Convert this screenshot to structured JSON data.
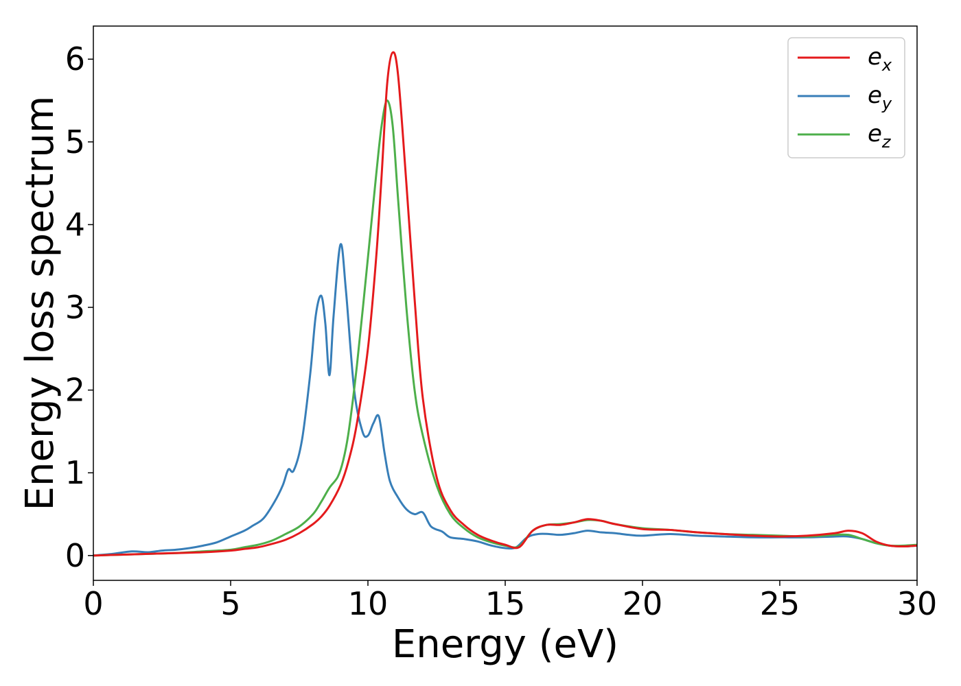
{
  "chart_data": {
    "type": "line",
    "title": "",
    "xlabel": "Energy (eV)",
    "ylabel": "Energy loss spectrum",
    "xlim": [
      0,
      30
    ],
    "ylim": [
      -0.3,
      6.4
    ],
    "xticks": [
      0,
      5,
      10,
      15,
      20,
      25,
      30
    ],
    "xtick_labels": [
      "0",
      "5",
      "10",
      "15",
      "20",
      "25",
      "30"
    ],
    "yticks": [
      0,
      1,
      2,
      3,
      4,
      5,
      6
    ],
    "ytick_labels": [
      "0",
      "1",
      "2",
      "3",
      "4",
      "5",
      "6"
    ],
    "grid": false,
    "legend_position": "top-right",
    "series": [
      {
        "name": "e_x",
        "legend_base": "e",
        "legend_sub": "x",
        "color": "#e41a1c",
        "x": [
          0,
          1,
          2,
          3,
          4,
          5,
          5.5,
          6,
          6.5,
          7,
          7.5,
          8,
          8.3,
          8.6,
          9,
          9.3,
          9.6,
          10,
          10.3,
          10.5,
          10.7,
          10.9,
          11.1,
          11.4,
          11.7,
          12,
          12.5,
          13,
          13.5,
          14,
          14.5,
          15,
          15.5,
          16,
          16.5,
          17,
          17.5,
          18,
          18.5,
          19,
          20,
          21,
          22,
          23,
          24,
          25,
          26,
          27,
          27.5,
          28,
          28.5,
          29,
          29.5,
          30
        ],
        "y": [
          0,
          0.01,
          0.02,
          0.03,
          0.04,
          0.06,
          0.08,
          0.1,
          0.14,
          0.19,
          0.27,
          0.38,
          0.47,
          0.6,
          0.85,
          1.15,
          1.6,
          2.5,
          3.6,
          4.6,
          5.7,
          6.08,
          5.8,
          4.5,
          3.1,
          1.9,
          0.95,
          0.55,
          0.37,
          0.25,
          0.18,
          0.13,
          0.1,
          0.3,
          0.37,
          0.37,
          0.4,
          0.44,
          0.42,
          0.38,
          0.32,
          0.31,
          0.28,
          0.26,
          0.24,
          0.23,
          0.24,
          0.27,
          0.3,
          0.27,
          0.17,
          0.12,
          0.11,
          0.12
        ]
      },
      {
        "name": "e_y",
        "legend_base": "e",
        "legend_sub": "y",
        "color": "#377eb8",
        "x": [
          0,
          0.7,
          1.4,
          2,
          2.5,
          3,
          3.5,
          4,
          4.5,
          5,
          5.5,
          5.8,
          6.2,
          6.6,
          6.9,
          7.1,
          7.3,
          7.6,
          7.9,
          8.1,
          8.3,
          8.45,
          8.6,
          8.75,
          9,
          9.2,
          9.5,
          9.8,
          10,
          10.2,
          10.4,
          10.6,
          10.8,
          11.1,
          11.4,
          11.7,
          12,
          12.3,
          12.7,
          13,
          13.5,
          14,
          14.5,
          15,
          15.4,
          15.8,
          16.2,
          16.6,
          17,
          17.5,
          18,
          18.5,
          19,
          19.5,
          20,
          21,
          22,
          23,
          24,
          25,
          26,
          27,
          27.5,
          28,
          28.5,
          29,
          29.5,
          30
        ],
        "y": [
          0,
          0.02,
          0.05,
          0.04,
          0.06,
          0.07,
          0.09,
          0.12,
          0.16,
          0.23,
          0.3,
          0.36,
          0.45,
          0.65,
          0.85,
          1.04,
          1.03,
          1.4,
          2.2,
          2.9,
          3.14,
          2.8,
          2.18,
          2.9,
          3.76,
          3.2,
          2.0,
          1.5,
          1.45,
          1.6,
          1.68,
          1.25,
          0.9,
          0.7,
          0.56,
          0.5,
          0.52,
          0.35,
          0.29,
          0.22,
          0.2,
          0.17,
          0.12,
          0.09,
          0.1,
          0.22,
          0.26,
          0.26,
          0.25,
          0.27,
          0.3,
          0.28,
          0.27,
          0.25,
          0.24,
          0.26,
          0.24,
          0.23,
          0.22,
          0.22,
          0.22,
          0.23,
          0.23,
          0.2,
          0.15,
          0.12,
          0.11,
          0.12
        ]
      },
      {
        "name": "e_z",
        "legend_base": "e",
        "legend_sub": "z",
        "color": "#4daf4a",
        "x": [
          0,
          1,
          2,
          3,
          4,
          5,
          5.5,
          6,
          6.5,
          7,
          7.5,
          8,
          8.3,
          8.6,
          8.9,
          9.1,
          9.3,
          9.6,
          10,
          10.3,
          10.5,
          10.7,
          10.9,
          11.1,
          11.4,
          11.7,
          12,
          12.5,
          13,
          13.5,
          14,
          14.5,
          15,
          15.5,
          16,
          16.5,
          17,
          17.5,
          18,
          18.5,
          19,
          20,
          21,
          22,
          23,
          24,
          25,
          26,
          27,
          27.5,
          28,
          28.5,
          29,
          29.5,
          30
        ],
        "y": [
          0,
          0.01,
          0.02,
          0.03,
          0.05,
          0.07,
          0.1,
          0.13,
          0.18,
          0.26,
          0.35,
          0.5,
          0.65,
          0.82,
          0.95,
          1.15,
          1.5,
          2.3,
          3.6,
          4.6,
          5.2,
          5.5,
          5.2,
          4.3,
          3.0,
          2.0,
          1.45,
          0.85,
          0.5,
          0.33,
          0.22,
          0.16,
          0.12,
          0.11,
          0.3,
          0.37,
          0.38,
          0.4,
          0.43,
          0.42,
          0.38,
          0.33,
          0.31,
          0.28,
          0.26,
          0.25,
          0.24,
          0.23,
          0.25,
          0.25,
          0.2,
          0.15,
          0.12,
          0.12,
          0.13
        ]
      }
    ]
  }
}
